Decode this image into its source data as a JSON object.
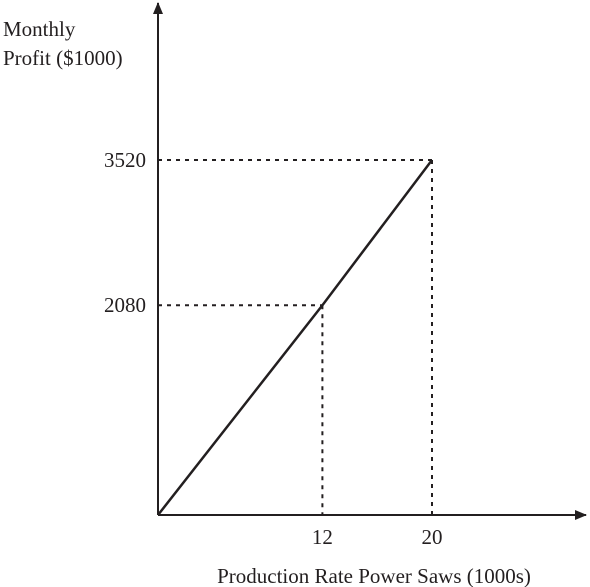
{
  "chart_data": {
    "type": "line",
    "title": "",
    "ylabel": [
      "Monthly",
      "Profit ($1000)"
    ],
    "xlabel": "Production Rate Power Saws (1000s)",
    "xlim": [
      0,
      31
    ],
    "ylim": [
      0,
      5000
    ],
    "x_ticks": [
      {
        "value": 12,
        "label": "12"
      },
      {
        "value": 20,
        "label": "20"
      }
    ],
    "y_ticks": [
      {
        "value": 2080,
        "label": "2080"
      },
      {
        "value": 3520,
        "label": "3520"
      }
    ],
    "series": [
      {
        "points": [
          [
            0,
            0
          ],
          [
            12,
            2080
          ],
          [
            20,
            3520
          ]
        ]
      }
    ],
    "guides": [
      {
        "x": 12,
        "y": 2080
      },
      {
        "x": 20,
        "y": 3520
      }
    ],
    "grid": false,
    "colors": {
      "ink": "#231f20"
    }
  }
}
